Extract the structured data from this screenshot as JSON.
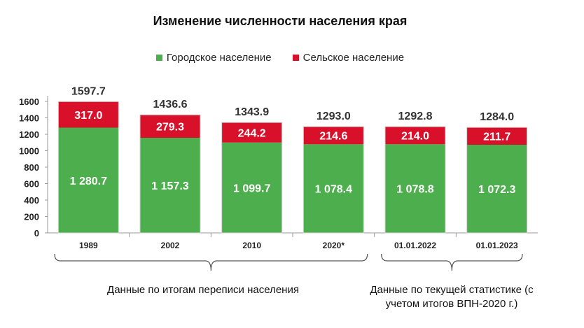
{
  "chart_data": {
    "type": "bar",
    "stacked": true,
    "title": "Изменение численности населения края",
    "categories": [
      "1989",
      "2002",
      "2010",
      "2020*",
      "01.01.2022",
      "01.01.2023"
    ],
    "series": [
      {
        "name": "Городское население",
        "values": [
          1280.7,
          1157.3,
          1099.7,
          1078.4,
          1078.8,
          1072.3
        ],
        "labels": [
          "1 280.7",
          "1 157.3",
          "1 099.7",
          "1 078.4",
          "1 078.8",
          "1 072.3"
        ],
        "color": "#4cae4c"
      },
      {
        "name": "Сельское население",
        "values": [
          317.0,
          279.3,
          244.2,
          214.6,
          214.0,
          211.7
        ],
        "labels": [
          "317.0",
          "279.3",
          "244.2",
          "214.6",
          "214.0",
          "211.7"
        ],
        "color": "#d8102a"
      }
    ],
    "totals": [
      "1597.7",
      "1436.6",
      "1343.9",
      "1293.0",
      "1292.8",
      "1284.0"
    ],
    "ylim": [
      0,
      1600
    ],
    "yticks": [
      0,
      200,
      400,
      600,
      800,
      1000,
      1200,
      1400,
      1600
    ],
    "legend": "top",
    "grid": false
  },
  "groups": [
    {
      "label": "Данные по итогам переписи населения"
    },
    {
      "label": "Данные по текущей статистике (с учетом итогов ВПН-2020 г.)"
    }
  ]
}
